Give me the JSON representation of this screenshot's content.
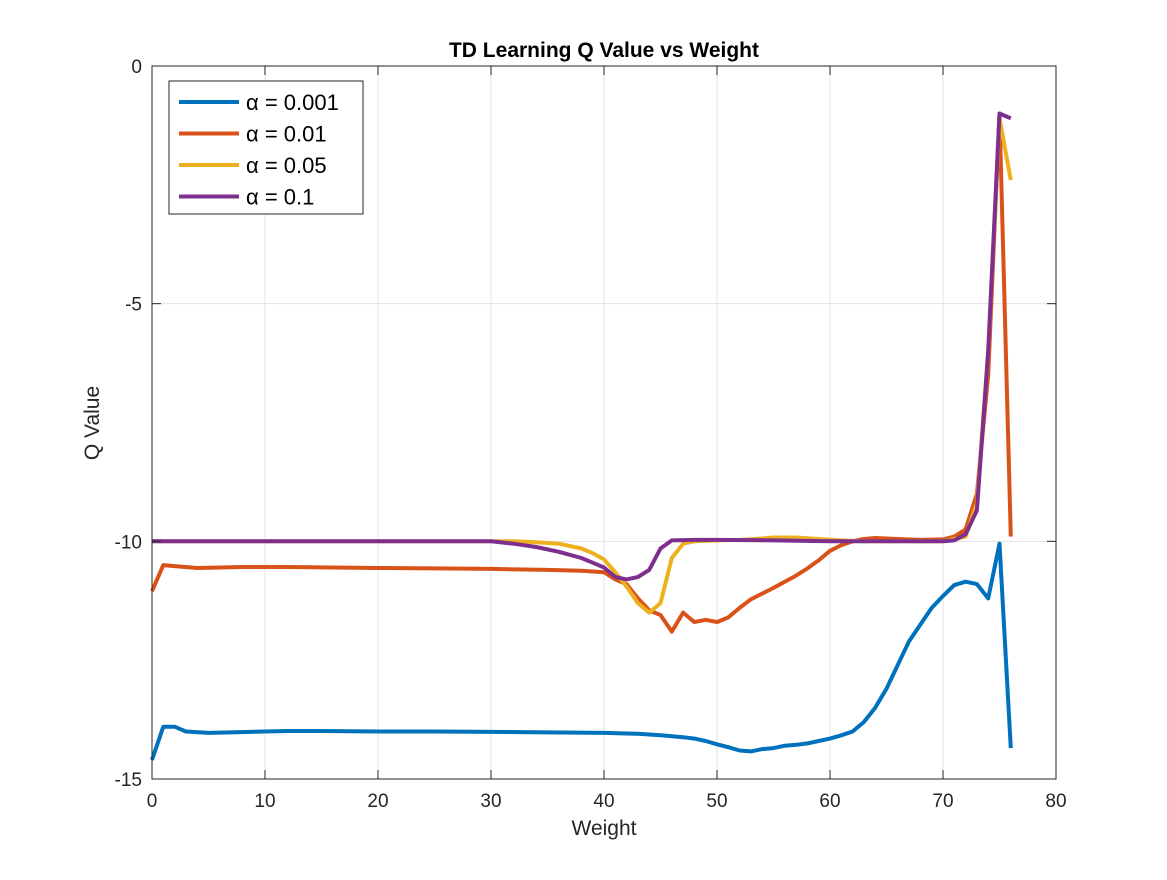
{
  "chart_data": {
    "type": "line",
    "title": "TD Learning Q Value vs Weight",
    "xlabel": "Weight",
    "ylabel": "Q Value",
    "xlim": [
      0,
      80
    ],
    "ylim": [
      -15,
      0
    ],
    "xticks": [
      "0",
      "10",
      "20",
      "30",
      "40",
      "50",
      "60",
      "70",
      "80"
    ],
    "yticks": [
      "0",
      "-5",
      "-10",
      "-15"
    ],
    "grid": true,
    "legend_position": "top-left",
    "series": [
      {
        "name": "α = 0.001",
        "color": "#0072BD",
        "points": [
          [
            0,
            -14.6
          ],
          [
            1,
            -13.9
          ],
          [
            2,
            -13.9
          ],
          [
            3,
            -14.0
          ],
          [
            5,
            -14.03
          ],
          [
            7,
            -14.02
          ],
          [
            10,
            -14.0
          ],
          [
            12,
            -13.99
          ],
          [
            15,
            -13.99
          ],
          [
            20,
            -14.0
          ],
          [
            25,
            -14.0
          ],
          [
            30,
            -14.01
          ],
          [
            35,
            -14.02
          ],
          [
            40,
            -14.03
          ],
          [
            43,
            -14.05
          ],
          [
            45,
            -14.08
          ],
          [
            47,
            -14.12
          ],
          [
            48,
            -14.15
          ],
          [
            49,
            -14.2
          ],
          [
            50,
            -14.27
          ],
          [
            51,
            -14.33
          ],
          [
            52,
            -14.4
          ],
          [
            53,
            -14.42
          ],
          [
            54,
            -14.37
          ],
          [
            55,
            -14.35
          ],
          [
            56,
            -14.3
          ],
          [
            57,
            -14.28
          ],
          [
            58,
            -14.25
          ],
          [
            59,
            -14.2
          ],
          [
            60,
            -14.15
          ],
          [
            61,
            -14.08
          ],
          [
            62,
            -14.0
          ],
          [
            63,
            -13.8
          ],
          [
            64,
            -13.5
          ],
          [
            65,
            -13.1
          ],
          [
            66,
            -12.6
          ],
          [
            67,
            -12.1
          ],
          [
            68,
            -11.75
          ],
          [
            69,
            -11.4
          ],
          [
            70,
            -11.15
          ],
          [
            71,
            -10.92
          ],
          [
            72,
            -10.85
          ],
          [
            73,
            -10.9
          ],
          [
            74,
            -11.2
          ],
          [
            75,
            -10.05
          ],
          [
            76,
            -14.35
          ]
        ]
      },
      {
        "name": "α = 0.01",
        "color": "#D95319",
        "points": [
          [
            0,
            -11.05
          ],
          [
            1,
            -10.5
          ],
          [
            2,
            -10.52
          ],
          [
            4,
            -10.56
          ],
          [
            6,
            -10.55
          ],
          [
            8,
            -10.54
          ],
          [
            12,
            -10.54
          ],
          [
            16,
            -10.55
          ],
          [
            20,
            -10.56
          ],
          [
            25,
            -10.57
          ],
          [
            30,
            -10.58
          ],
          [
            35,
            -10.6
          ],
          [
            38,
            -10.62
          ],
          [
            40,
            -10.65
          ],
          [
            41,
            -10.8
          ],
          [
            42,
            -10.9
          ],
          [
            43,
            -11.2
          ],
          [
            44,
            -11.45
          ],
          [
            45,
            -11.55
          ],
          [
            46,
            -11.9
          ],
          [
            47,
            -11.5
          ],
          [
            48,
            -11.7
          ],
          [
            49,
            -11.65
          ],
          [
            50,
            -11.7
          ],
          [
            51,
            -11.6
          ],
          [
            52,
            -11.4
          ],
          [
            53,
            -11.22
          ],
          [
            54,
            -11.1
          ],
          [
            55,
            -10.98
          ],
          [
            56,
            -10.85
          ],
          [
            57,
            -10.72
          ],
          [
            58,
            -10.57
          ],
          [
            59,
            -10.4
          ],
          [
            60,
            -10.2
          ],
          [
            61,
            -10.08
          ],
          [
            62,
            -10.0
          ],
          [
            63,
            -9.95
          ],
          [
            64,
            -9.93
          ],
          [
            65,
            -9.94
          ],
          [
            66,
            -9.95
          ],
          [
            68,
            -9.97
          ],
          [
            70,
            -9.96
          ],
          [
            71,
            -9.9
          ],
          [
            72,
            -9.75
          ],
          [
            73,
            -9.0
          ],
          [
            74,
            -6.5
          ],
          [
            75,
            -1.0
          ],
          [
            76,
            -9.9
          ]
        ]
      },
      {
        "name": "α = 0.05",
        "color": "#EDB120",
        "points": [
          [
            0,
            -10.0
          ],
          [
            10,
            -10.0
          ],
          [
            20,
            -10.0
          ],
          [
            30,
            -10.0
          ],
          [
            32,
            -10.0
          ],
          [
            34,
            -10.02
          ],
          [
            36,
            -10.05
          ],
          [
            38,
            -10.15
          ],
          [
            39,
            -10.25
          ],
          [
            40,
            -10.38
          ],
          [
            41,
            -10.65
          ],
          [
            42,
            -10.95
          ],
          [
            43,
            -11.3
          ],
          [
            44,
            -11.5
          ],
          [
            45,
            -11.3
          ],
          [
            46,
            -10.35
          ],
          [
            47,
            -10.05
          ],
          [
            48,
            -10.0
          ],
          [
            50,
            -9.98
          ],
          [
            52,
            -9.97
          ],
          [
            54,
            -9.94
          ],
          [
            55,
            -9.92
          ],
          [
            57,
            -9.92
          ],
          [
            59,
            -9.95
          ],
          [
            61,
            -9.98
          ],
          [
            63,
            -10.0
          ],
          [
            66,
            -10.0
          ],
          [
            70,
            -10.0
          ],
          [
            72,
            -9.9
          ],
          [
            73,
            -9.2
          ],
          [
            74,
            -6.0
          ],
          [
            75,
            -1.1
          ],
          [
            76,
            -2.4
          ]
        ]
      },
      {
        "name": "α = 0.1",
        "color": "#7E2F8E",
        "points": [
          [
            0,
            -10.0
          ],
          [
            10,
            -10.0
          ],
          [
            20,
            -10.0
          ],
          [
            30,
            -10.0
          ],
          [
            32,
            -10.05
          ],
          [
            34,
            -10.12
          ],
          [
            36,
            -10.22
          ],
          [
            38,
            -10.35
          ],
          [
            39,
            -10.45
          ],
          [
            40,
            -10.55
          ],
          [
            41,
            -10.75
          ],
          [
            42,
            -10.8
          ],
          [
            43,
            -10.75
          ],
          [
            44,
            -10.6
          ],
          [
            45,
            -10.15
          ],
          [
            46,
            -9.98
          ],
          [
            48,
            -9.97
          ],
          [
            50,
            -9.97
          ],
          [
            55,
            -9.98
          ],
          [
            60,
            -10.0
          ],
          [
            65,
            -10.0
          ],
          [
            70,
            -10.0
          ],
          [
            71,
            -9.98
          ],
          [
            72,
            -9.85
          ],
          [
            73,
            -9.35
          ],
          [
            74,
            -6.0
          ],
          [
            75,
            -1.0
          ],
          [
            76,
            -1.1
          ]
        ]
      }
    ]
  }
}
